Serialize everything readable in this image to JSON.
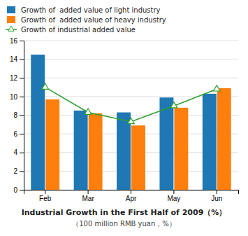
{
  "chart_data": {
    "type": "bar",
    "title": "Industrial Growth in the First Half of 2009（%）",
    "subtitle": "（100 million RMB yuan，%）",
    "categories": [
      "Feb",
      "Mar",
      "Apr",
      "May",
      "Jun"
    ],
    "series": [
      {
        "name": "Growth of  added value of light industry",
        "values": [
          14.5,
          8.5,
          8.3,
          9.9,
          10.3
        ]
      },
      {
        "name": "Growth of  added value of heavy industry",
        "values": [
          9.7,
          8.2,
          6.9,
          8.8,
          10.9
        ]
      },
      {
        "name": "Growth of industrial added value",
        "type": "line",
        "marker": "triangle",
        "values": [
          11.0,
          8.3,
          7.3,
          9.0,
          10.8
        ]
      }
    ],
    "ylim": [
      0,
      16
    ],
    "yticks": [
      0,
      2,
      4,
      6,
      8,
      10,
      12,
      14,
      16
    ],
    "grid": true,
    "legend": "top"
  }
}
